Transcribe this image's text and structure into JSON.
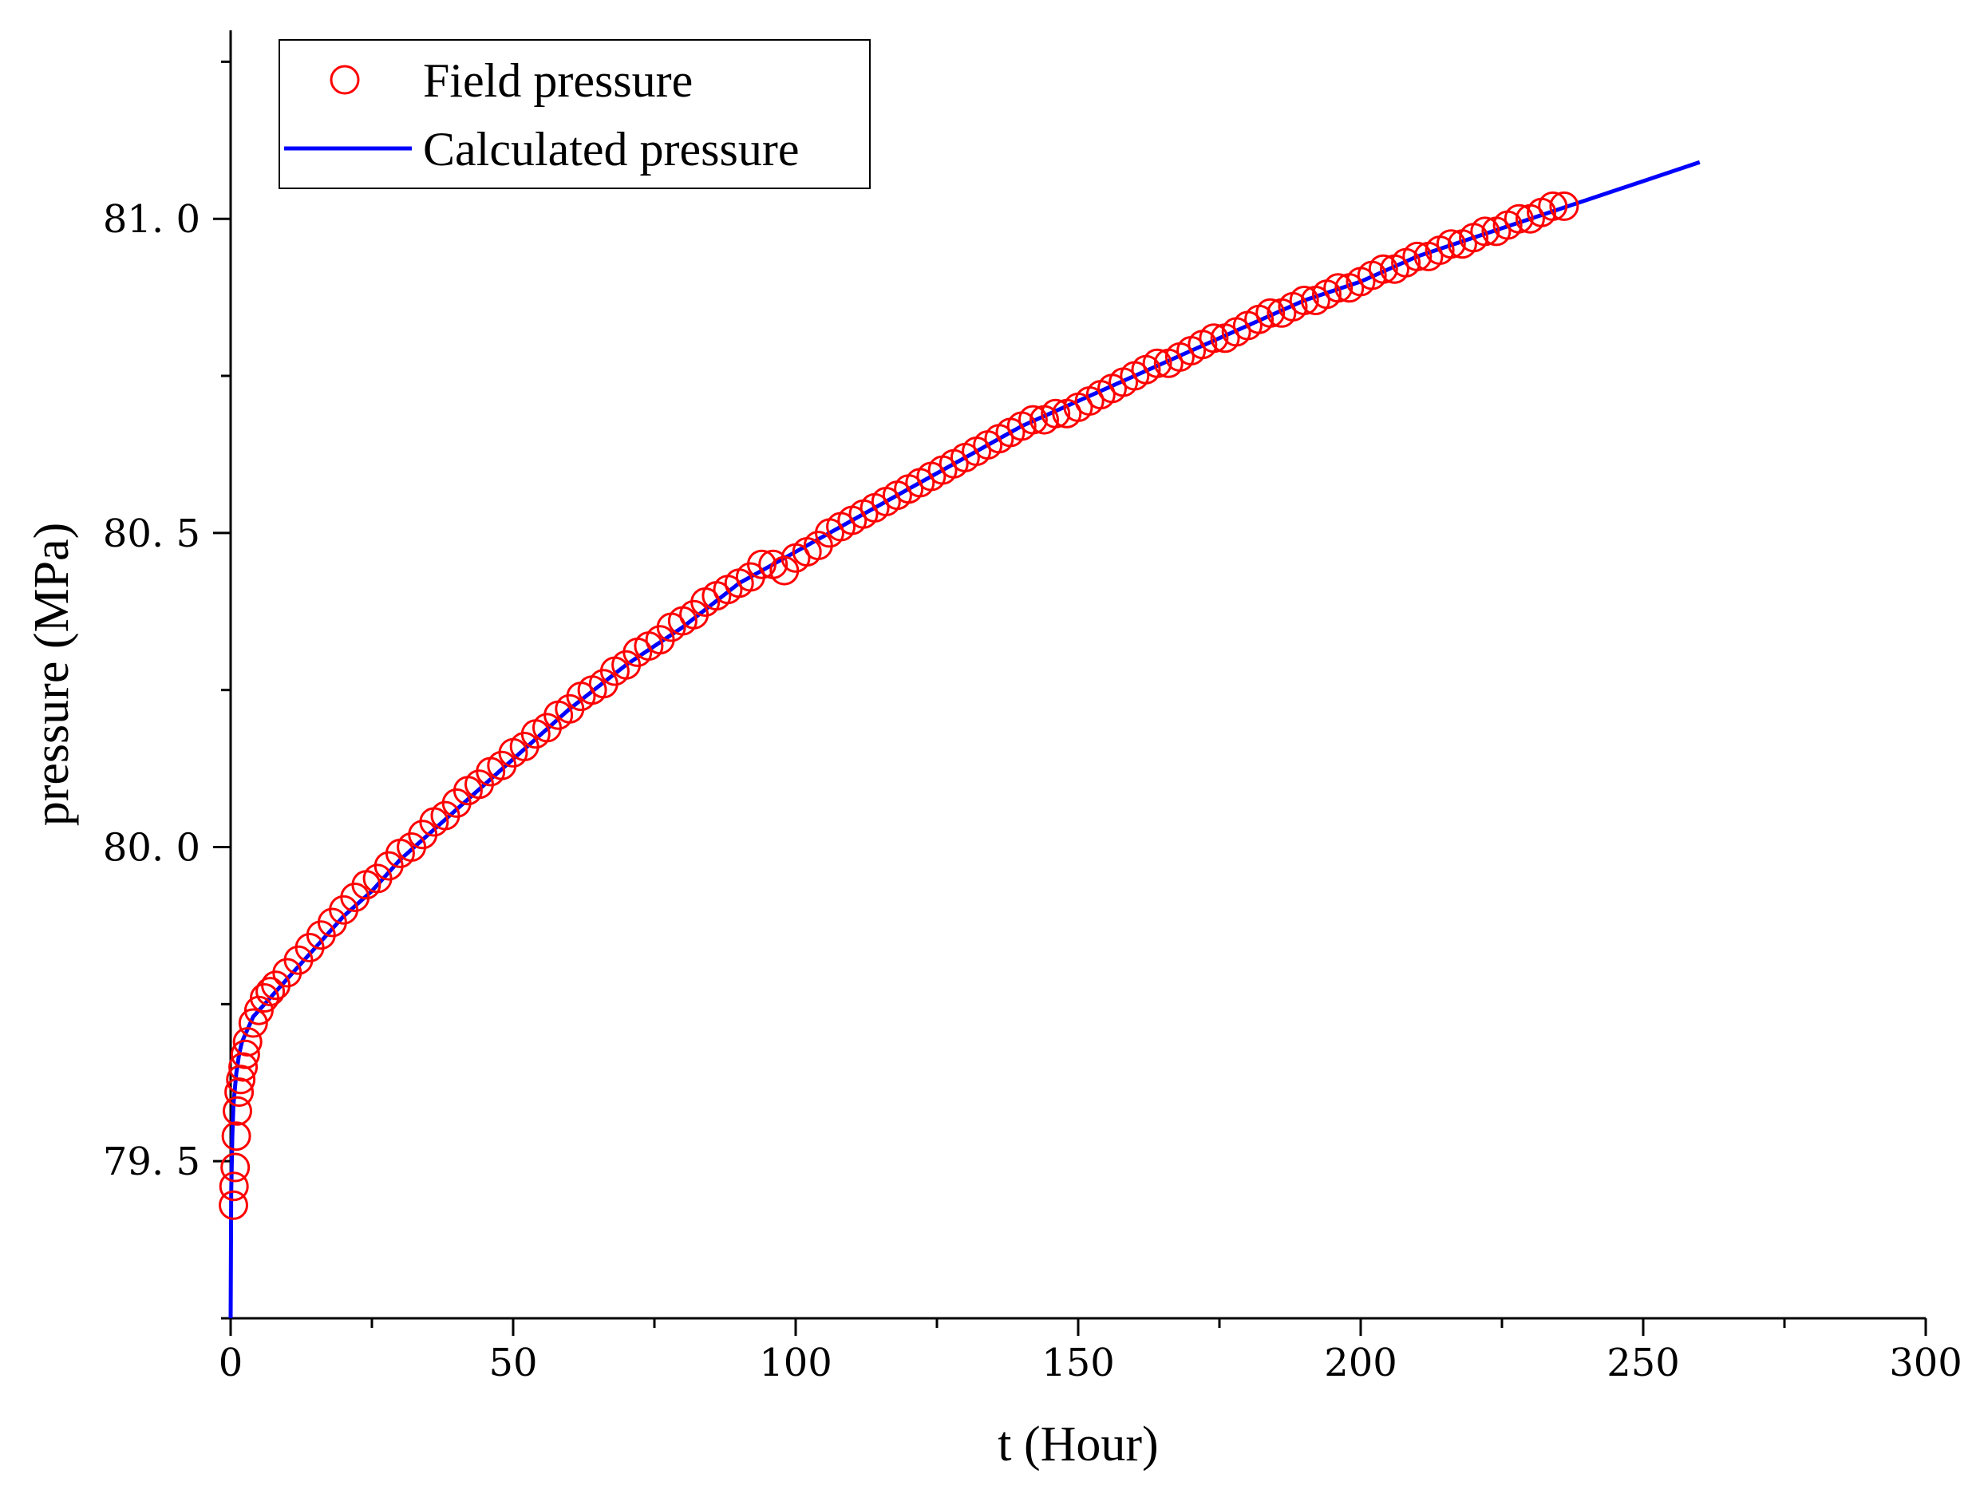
{
  "chart_data": {
    "type": "scatter",
    "xlabel": "t (Hour)",
    "ylabel": "pressure (MPa)",
    "xlim": [
      0,
      300
    ],
    "ylim": [
      79.25,
      81.3
    ],
    "x_ticks": [
      0,
      50,
      100,
      150,
      200,
      250,
      300
    ],
    "x_tick_labels": [
      "0",
      "50",
      "100",
      "150",
      "200",
      "250",
      "300"
    ],
    "y_ticks": [
      79.5,
      80.0,
      80.5,
      81.0
    ],
    "y_tick_labels": [
      "79. 5",
      "80. 0",
      "80. 5",
      "81. 0"
    ],
    "grid": false,
    "legend": {
      "position": "top-left",
      "entries": [
        {
          "label": "Field pressure",
          "marker": "open-circle",
          "color": "#ff0000"
        },
        {
          "label": "Calculated pressure",
          "marker": "line",
          "color": "#0000ff"
        }
      ]
    },
    "series": [
      {
        "name": "Field pressure",
        "kind": "scatter",
        "color": "#ff0000",
        "x": [
          0.5,
          0.6,
          0.8,
          1.0,
          1.2,
          1.5,
          1.8,
          2.2,
          2.6,
          3,
          4,
          5,
          6,
          7,
          8,
          10,
          12,
          14,
          16,
          18,
          20,
          22,
          24,
          26,
          28,
          30,
          32,
          34,
          36,
          38,
          40,
          42,
          44,
          46,
          48,
          50,
          52,
          54,
          56,
          58,
          60,
          62,
          64,
          66,
          68,
          70,
          72,
          74,
          76,
          78,
          80,
          82,
          84,
          86,
          88,
          90,
          92,
          94,
          96,
          98,
          100,
          102,
          104,
          106,
          108,
          110,
          112,
          114,
          116,
          118,
          120,
          122,
          124,
          126,
          128,
          130,
          132,
          134,
          136,
          138,
          140,
          142,
          144,
          146,
          148,
          150,
          152,
          154,
          156,
          158,
          160,
          162,
          164,
          166,
          168,
          170,
          172,
          174,
          176,
          178,
          180,
          182,
          184,
          186,
          188,
          190,
          192,
          194,
          196,
          198,
          200,
          202,
          204,
          206,
          208,
          210,
          212,
          214,
          216,
          218,
          220,
          222,
          224,
          226,
          228,
          230,
          232,
          234,
          236
        ],
        "y": [
          79.43,
          79.46,
          79.49,
          79.54,
          79.58,
          79.61,
          79.63,
          79.65,
          79.67,
          79.69,
          79.72,
          79.74,
          79.76,
          79.77,
          79.78,
          79.8,
          79.82,
          79.84,
          79.86,
          79.88,
          79.9,
          79.92,
          79.94,
          79.95,
          79.97,
          79.99,
          80.0,
          80.02,
          80.04,
          80.05,
          80.07,
          80.09,
          80.1,
          80.12,
          80.13,
          80.15,
          80.16,
          80.18,
          80.19,
          80.21,
          80.22,
          80.24,
          80.25,
          80.26,
          80.28,
          80.29,
          80.31,
          80.32,
          80.33,
          80.35,
          80.36,
          80.37,
          80.39,
          80.4,
          80.41,
          80.42,
          80.43,
          80.45,
          80.45,
          80.44,
          80.46,
          80.47,
          80.48,
          80.5,
          80.51,
          80.52,
          80.53,
          80.54,
          80.55,
          80.56,
          80.57,
          80.58,
          80.59,
          80.6,
          80.61,
          80.62,
          80.63,
          80.64,
          80.65,
          80.66,
          80.67,
          80.68,
          80.68,
          80.69,
          80.69,
          80.7,
          80.71,
          80.72,
          80.73,
          80.74,
          80.75,
          80.76,
          80.77,
          80.77,
          80.78,
          80.79,
          80.8,
          80.81,
          80.81,
          80.82,
          80.83,
          80.84,
          80.85,
          80.85,
          80.86,
          80.87,
          80.87,
          80.88,
          80.89,
          80.89,
          80.9,
          80.91,
          80.92,
          80.92,
          80.93,
          80.94,
          80.94,
          80.95,
          80.96,
          80.96,
          80.97,
          80.98,
          80.98,
          80.99,
          81.0,
          81.0,
          81.01,
          81.02,
          81.02
        ]
      },
      {
        "name": "Calculated pressure",
        "kind": "line",
        "color": "#0000ff",
        "x": [
          0,
          0.1,
          0.3,
          0.5,
          1,
          1.5,
          2,
          3,
          4,
          6,
          8,
          10,
          15,
          20,
          25,
          30,
          35,
          40,
          45,
          50,
          60,
          70,
          80,
          90,
          100,
          110,
          120,
          130,
          140,
          150,
          160,
          170,
          180,
          190,
          200,
          210,
          220,
          230,
          240,
          250,
          260
        ],
        "y": [
          79.25,
          79.45,
          79.54,
          79.59,
          79.64,
          79.67,
          79.69,
          79.71,
          79.73,
          79.75,
          79.77,
          79.79,
          79.84,
          79.89,
          79.93,
          79.98,
          80.02,
          80.06,
          80.1,
          80.14,
          80.22,
          80.29,
          80.35,
          80.42,
          80.47,
          80.52,
          80.57,
          80.62,
          80.67,
          80.71,
          80.75,
          80.79,
          80.83,
          80.87,
          80.9,
          80.94,
          80.97,
          81.0,
          81.03,
          81.06,
          81.09
        ]
      }
    ]
  }
}
